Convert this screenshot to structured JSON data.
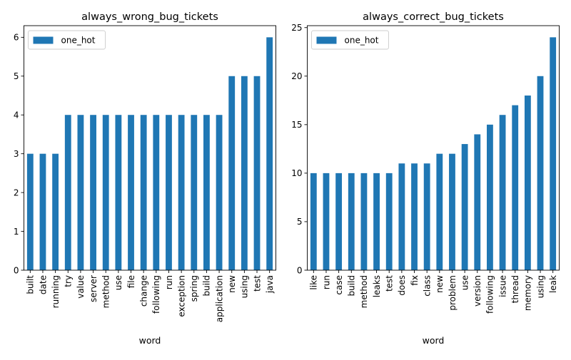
{
  "colors": {
    "bar": "#1f77b4",
    "axis": "#000000",
    "legend_border": "#cccccc"
  },
  "chart_data": [
    {
      "type": "bar",
      "title": "always_wrong_bug_tickets",
      "xlabel": "word",
      "ylabel": "",
      "legend": {
        "entries": [
          "one_hot"
        ],
        "placement": "top-left"
      },
      "grid": false,
      "ylim": [
        0,
        6.3
      ],
      "yticks": [
        0,
        1,
        2,
        3,
        4,
        5,
        6
      ],
      "series": [
        {
          "name": "one_hot"
        }
      ],
      "categories": [
        "built",
        "date",
        "running",
        "try",
        "value",
        "server",
        "method",
        "use",
        "file",
        "change",
        "following",
        "run",
        "exception",
        "spring",
        "build",
        "application",
        "new",
        "using",
        "test",
        "java"
      ],
      "values": [
        3,
        3,
        3,
        4,
        4,
        4,
        4,
        4,
        4,
        4,
        4,
        4,
        4,
        4,
        4,
        4,
        5,
        5,
        5,
        6
      ]
    },
    {
      "type": "bar",
      "title": "always_correct_bug_tickets",
      "xlabel": "word",
      "ylabel": "",
      "legend": {
        "entries": [
          "one_hot"
        ],
        "placement": "top-left"
      },
      "grid": false,
      "ylim": [
        0,
        25.2
      ],
      "yticks": [
        0,
        5,
        10,
        15,
        20,
        25
      ],
      "series": [
        {
          "name": "one_hot"
        }
      ],
      "categories": [
        "like",
        "run",
        "case",
        "build",
        "method",
        "leaks",
        "test",
        "does",
        "fix",
        "class",
        "new",
        "problem",
        "use",
        "version",
        "following",
        "issue",
        "thread",
        "memory",
        "using",
        "leak"
      ],
      "values": [
        10,
        10,
        10,
        10,
        10,
        10,
        10,
        11,
        11,
        11,
        12,
        12,
        13,
        14,
        15,
        16,
        17,
        18,
        20,
        24
      ]
    }
  ]
}
